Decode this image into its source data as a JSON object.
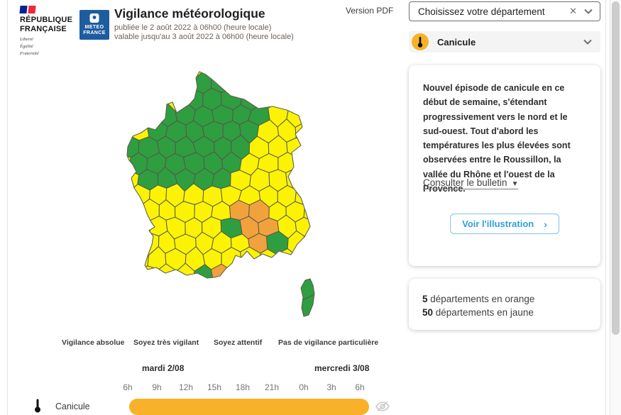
{
  "header": {
    "marianne": {
      "line1": "RÉPUBLIQUE",
      "line2": "FRANÇAISE",
      "motto1": "Liberté",
      "motto2": "Égalité",
      "motto3": "Fraternité"
    },
    "meteo_logo": {
      "line1": "METEO",
      "line2": "FRANCE"
    },
    "title": "Vigilance météorologique",
    "published": "publiée le 2 août 2022 à 06h00 (heure locale)",
    "valid": "valable jusqu'au 3 août 2022 à 06h00 (heure locale)",
    "version_pdf": "Version PDF"
  },
  "sidebar": {
    "department_select": {
      "placeholder": "Choisissez votre département",
      "clear_icon": "close-icon",
      "chevron_icon": "chevron-down-icon"
    },
    "phenomenon": {
      "label": "Canicule",
      "icon": "thermometer-icon"
    },
    "bulletin": {
      "text": "Nouvel épisode de canicule en ce début de semaine, s'étendant progressivement vers le nord et le sud-ouest. Tout d'abord les températures les plus élevées sont observées entre le Roussillon, la vallée du Rhône et l'ouest de la Provence.",
      "consult_link": "Consulter le bulletin",
      "illustration_button": "Voir l'illustration"
    },
    "stats": [
      {
        "count": "5",
        "label": " départements en orange"
      },
      {
        "count": "50",
        "label": " départements en jaune"
      }
    ]
  },
  "legend": {
    "levels": [
      "Vigilance absolue",
      "Soyez très vigilant",
      "Soyez attentif",
      "Pas de vigilance particulière"
    ]
  },
  "timeline": {
    "days": [
      "mardi 2/08",
      "mercredi 3/08"
    ],
    "hours": [
      "6h",
      "9h",
      "12h",
      "15h",
      "18h",
      "21h",
      "0h",
      "3h",
      "6h"
    ],
    "row_label": "Canicule",
    "bar_color": "#f8b129"
  },
  "map": {
    "colors": {
      "green": "#2f9e41",
      "yellow": "#fcf303",
      "orange": "#f2a23c",
      "border": "#55584a",
      "outline": "#5d6052"
    },
    "outline": [
      [
        103,
        8
      ],
      [
        112,
        12
      ],
      [
        122,
        20
      ],
      [
        147,
        42
      ],
      [
        166,
        47
      ],
      [
        186,
        60
      ],
      [
        206,
        57
      ],
      [
        226,
        62
      ],
      [
        243,
        70
      ],
      [
        248,
        86
      ],
      [
        238,
        96
      ],
      [
        246,
        112
      ],
      [
        233,
        122
      ],
      [
        236,
        142
      ],
      [
        228,
        156
      ],
      [
        234,
        170
      ],
      [
        246,
        186
      ],
      [
        253,
        206
      ],
      [
        259,
        226
      ],
      [
        251,
        241
      ],
      [
        241,
        251
      ],
      [
        232,
        266
      ],
      [
        215,
        261
      ],
      [
        205,
        270
      ],
      [
        192,
        265
      ],
      [
        180,
        272
      ],
      [
        170,
        261
      ],
      [
        162,
        270
      ],
      [
        154,
        267
      ],
      [
        149,
        278
      ],
      [
        140,
        286
      ],
      [
        132,
        296
      ],
      [
        124,
        298
      ],
      [
        114,
        299
      ],
      [
        100,
        292
      ],
      [
        85,
        295
      ],
      [
        70,
        287
      ],
      [
        55,
        292
      ],
      [
        42,
        284
      ],
      [
        30,
        287
      ],
      [
        26,
        281
      ],
      [
        30,
        268
      ],
      [
        36,
        252
      ],
      [
        38,
        240
      ],
      [
        32,
        232
      ],
      [
        40,
        227
      ],
      [
        35,
        220
      ],
      [
        29,
        208
      ],
      [
        24,
        194
      ],
      [
        19,
        184
      ],
      [
        11,
        172
      ],
      [
        7,
        158
      ],
      [
        14,
        149
      ],
      [
        9,
        139
      ],
      [
        4,
        133
      ],
      [
        1,
        126
      ],
      [
        2,
        114
      ],
      [
        9,
        99
      ],
      [
        21,
        94
      ],
      [
        31,
        87
      ],
      [
        41,
        90
      ],
      [
        50,
        79
      ],
      [
        55,
        74
      ],
      [
        57,
        54
      ],
      [
        65,
        51
      ],
      [
        71,
        66
      ],
      [
        77,
        62
      ],
      [
        89,
        54
      ],
      [
        96,
        46
      ],
      [
        100,
        29
      ],
      [
        98,
        17
      ]
    ],
    "green_region": [
      [
        0,
        105
      ],
      [
        20,
        92
      ],
      [
        40,
        85
      ],
      [
        55,
        62
      ],
      [
        68,
        52
      ],
      [
        78,
        45
      ],
      [
        95,
        6
      ],
      [
        112,
        8
      ],
      [
        135,
        20
      ],
      [
        160,
        32
      ],
      [
        190,
        58
      ],
      [
        199,
        68
      ],
      [
        192,
        82
      ],
      [
        178,
        88
      ],
      [
        170,
        100
      ],
      [
        178,
        112
      ],
      [
        172,
        132
      ],
      [
        160,
        156
      ],
      [
        143,
        163
      ],
      [
        133,
        169
      ],
      [
        116,
        168
      ],
      [
        100,
        173
      ],
      [
        80,
        168
      ],
      [
        55,
        168
      ],
      [
        35,
        179
      ],
      [
        15,
        168
      ],
      [
        4,
        138
      ]
    ],
    "orange_points": [
      [
        172,
        206
      ],
      [
        192,
        212
      ],
      [
        170,
        236
      ],
      [
        190,
        239
      ],
      [
        133,
        291
      ]
    ],
    "green_points": [
      [
        150,
        222
      ],
      [
        221,
        256
      ],
      [
        110,
        292
      ]
    ],
    "corsica": [
      [
        252,
        302
      ],
      [
        259,
        300
      ],
      [
        263,
        309
      ],
      [
        265,
        321
      ],
      [
        263,
        336
      ],
      [
        257,
        351
      ],
      [
        250,
        353
      ],
      [
        247,
        341
      ],
      [
        249,
        326
      ],
      [
        246,
        313
      ]
    ],
    "corsica_divider": [
      [
        248,
        330
      ],
      [
        263,
        323
      ]
    ]
  }
}
